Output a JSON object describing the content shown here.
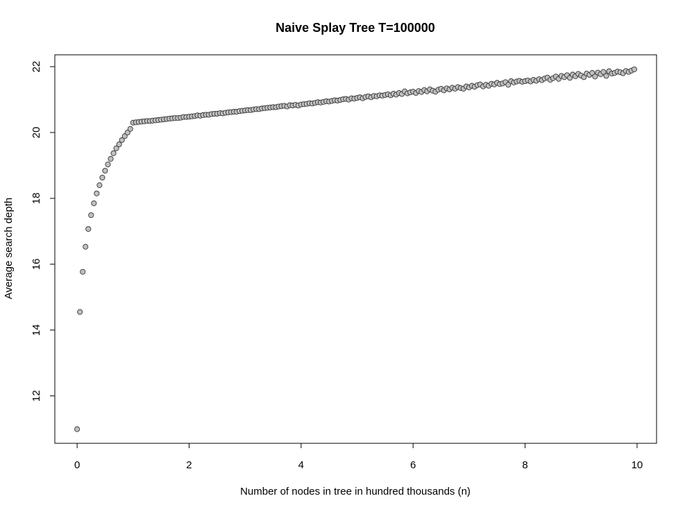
{
  "chart_data": {
    "type": "scatter",
    "title": "Naive Splay Tree T=100000",
    "x_label": "Number of nodes in tree in hundred thousands (n)",
    "y_label": "Average search depth",
    "xlim": [
      -0.398,
      10.348
    ],
    "ylim": [
      10.56,
      22.36
    ],
    "xticks": [
      0,
      2,
      4,
      6,
      8,
      10
    ],
    "yticks": [
      12,
      14,
      16,
      18,
      20,
      22
    ],
    "grid": false,
    "series": [
      {
        "color": "#c0c0c0",
        "x": [
          0,
          0.05,
          0.1,
          0.15,
          0.2,
          0.25,
          0.3,
          0.35,
          0.4,
          0.45,
          0.5,
          0.55,
          0.6,
          0.65,
          0.7,
          0.75,
          0.8,
          0.85,
          0.9,
          0.95,
          1,
          1.05,
          1.1,
          1.15,
          1.2,
          1.25,
          1.3,
          1.35,
          1.4,
          1.45,
          1.5,
          1.55,
          1.6,
          1.65,
          1.7,
          1.75,
          1.8,
          1.85,
          1.9,
          1.95,
          2,
          2.05,
          2.1,
          2.15,
          2.2,
          2.25,
          2.3,
          2.35,
          2.4,
          2.45,
          2.5,
          2.55,
          2.6,
          2.65,
          2.7,
          2.75,
          2.8,
          2.85,
          2.9,
          2.95,
          3,
          3.05,
          3.1,
          3.15,
          3.2,
          3.25,
          3.3,
          3.35,
          3.4,
          3.45,
          3.5,
          3.55,
          3.6,
          3.65,
          3.7,
          3.75,
          3.8,
          3.85,
          3.9,
          3.95,
          4,
          4.05,
          4.1,
          4.15,
          4.2,
          4.25,
          4.3,
          4.35,
          4.4,
          4.45,
          4.5,
          4.55,
          4.6,
          4.65,
          4.7,
          4.75,
          4.8,
          4.85,
          4.9,
          4.95,
          5,
          5.05,
          5.1,
          5.15,
          5.2,
          5.25,
          5.3,
          5.35,
          5.4,
          5.45,
          5.5,
          5.55,
          5.6,
          5.65,
          5.7,
          5.75,
          5.8,
          5.85,
          5.9,
          5.95,
          6,
          6.05,
          6.1,
          6.15,
          6.2,
          6.25,
          6.3,
          6.35,
          6.4,
          6.45,
          6.5,
          6.55,
          6.6,
          6.65,
          6.7,
          6.75,
          6.8,
          6.85,
          6.9,
          6.95,
          7,
          7.05,
          7.1,
          7.15,
          7.2,
          7.25,
          7.3,
          7.35,
          7.4,
          7.45,
          7.5,
          7.55,
          7.6,
          7.65,
          7.7,
          7.75,
          7.8,
          7.85,
          7.9,
          7.95,
          8,
          8.05,
          8.1,
          8.15,
          8.2,
          8.25,
          8.3,
          8.35,
          8.4,
          8.45,
          8.5,
          8.55,
          8.6,
          8.65,
          8.7,
          8.75,
          8.8,
          8.85,
          8.9,
          8.95,
          9,
          9.05,
          9.1,
          9.15,
          9.2,
          9.25,
          9.3,
          9.35,
          9.4,
          9.45,
          9.5,
          9.55,
          9.6,
          9.65,
          9.7,
          9.75,
          9.8,
          9.85,
          9.9,
          9.95
        ],
        "values": [
          10.99,
          14.55,
          15.77,
          16.53,
          17.07,
          17.49,
          17.85,
          18.15,
          18.4,
          18.63,
          18.84,
          19.03,
          19.2,
          19.37,
          19.52,
          19.64,
          19.77,
          19.89,
          20.0,
          20.11,
          20.3,
          20.31,
          20.32,
          20.33,
          20.34,
          20.35,
          20.35,
          20.36,
          20.37,
          20.38,
          20.39,
          20.4,
          20.41,
          20.42,
          20.43,
          20.44,
          20.44,
          20.45,
          20.47,
          20.47,
          20.48,
          20.49,
          20.5,
          20.52,
          20.51,
          20.53,
          20.54,
          20.54,
          20.56,
          20.57,
          20.57,
          20.59,
          20.58,
          20.6,
          20.61,
          20.62,
          20.63,
          20.63,
          20.65,
          20.66,
          20.67,
          20.68,
          20.68,
          20.7,
          20.71,
          20.71,
          20.73,
          20.74,
          20.75,
          20.76,
          20.77,
          20.77,
          20.79,
          20.8,
          20.81,
          20.79,
          20.83,
          20.82,
          20.84,
          20.82,
          20.85,
          20.86,
          20.87,
          20.89,
          20.88,
          20.9,
          20.92,
          20.91,
          20.93,
          20.95,
          20.94,
          20.96,
          20.98,
          20.97,
          20.99,
          21.01,
          21.02,
          21.0,
          21.04,
          21.03,
          21.05,
          21.07,
          21.04,
          21.08,
          21.1,
          21.07,
          21.11,
          21.1,
          21.13,
          21.12,
          21.14,
          21.16,
          21.13,
          21.18,
          21.15,
          21.2,
          21.17,
          21.25,
          21.19,
          21.22,
          21.24,
          21.2,
          21.26,
          21.23,
          21.29,
          21.25,
          21.31,
          21.27,
          21.24,
          21.3,
          21.33,
          21.28,
          21.34,
          21.31,
          21.36,
          21.33,
          21.38,
          21.35,
          21.33,
          21.4,
          21.37,
          21.42,
          21.39,
          21.44,
          21.46,
          21.4,
          21.45,
          21.42,
          21.48,
          21.46,
          21.51,
          21.47,
          21.49,
          21.53,
          21.45,
          21.56,
          21.52,
          21.55,
          21.57,
          21.54,
          21.56,
          21.58,
          21.55,
          21.6,
          21.57,
          21.62,
          21.59,
          21.64,
          21.67,
          21.6,
          21.65,
          21.7,
          21.63,
          21.72,
          21.68,
          21.74,
          21.66,
          21.76,
          21.71,
          21.78,
          21.73,
          21.68,
          21.79,
          21.75,
          21.81,
          21.7,
          21.82,
          21.77,
          21.84,
          21.72,
          21.86,
          21.79,
          21.81,
          21.85,
          21.83,
          21.8,
          21.87,
          21.84,
          21.88,
          21.92
        ]
      }
    ]
  }
}
